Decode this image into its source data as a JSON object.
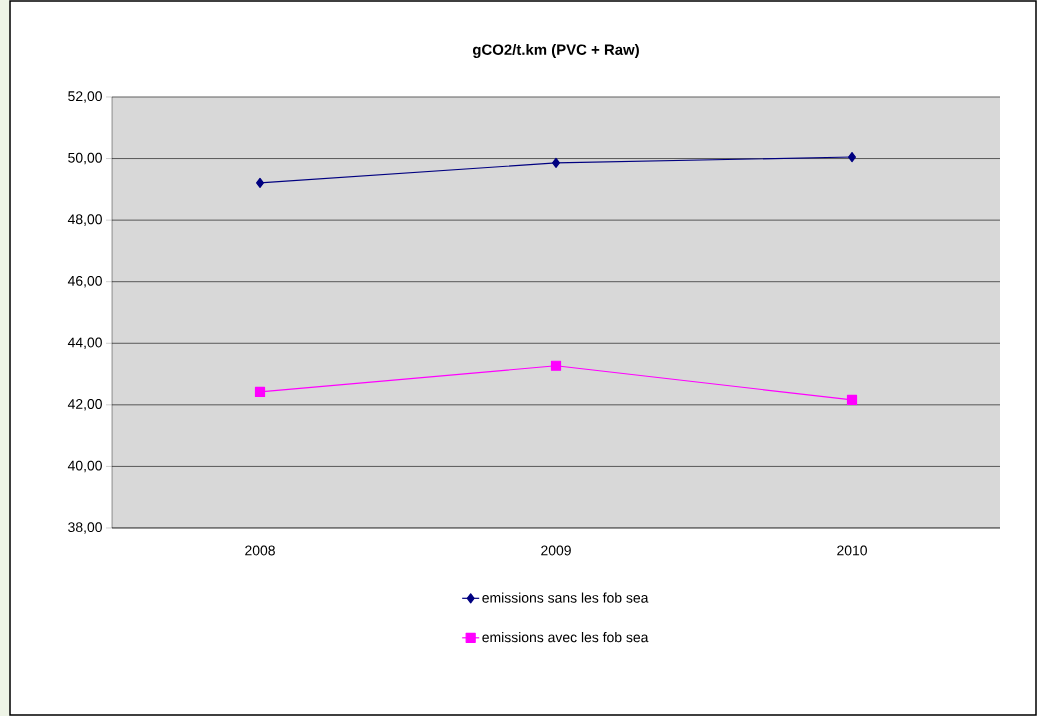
{
  "chart_data": {
    "type": "line",
    "title": "gCO2/t.km (PVC + Raw)",
    "categories": [
      "2008",
      "2009",
      "2010"
    ],
    "series": [
      {
        "name": "emissions sans les fob sea",
        "color": "#000080",
        "marker": "diamond",
        "values": [
          49.21,
          49.86,
          50.05
        ]
      },
      {
        "name": "emissions avec les fob sea",
        "color": "#ff00ff",
        "marker": "square",
        "values": [
          42.42,
          43.27,
          42.16
        ]
      }
    ],
    "ylim": [
      38,
      52
    ],
    "yticks": [
      {
        "value": 38,
        "label": "38,00"
      },
      {
        "value": 40,
        "label": "40,00"
      },
      {
        "value": 42,
        "label": "42,00"
      },
      {
        "value": 44,
        "label": "44,00"
      },
      {
        "value": 46,
        "label": "46,00"
      },
      {
        "value": 48,
        "label": "48,00"
      },
      {
        "value": 50,
        "label": "50,00"
      },
      {
        "value": 52,
        "label": "52,00"
      }
    ],
    "grid": "y",
    "legend": "bottom",
    "line_style": "solid"
  }
}
